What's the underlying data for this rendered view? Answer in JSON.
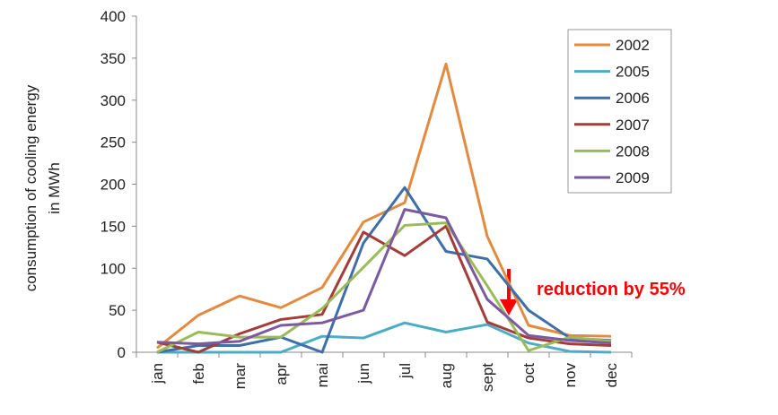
{
  "chart_data": {
    "type": "line",
    "ylabel": [
      "consumption of cooling energy",
      "in MWh"
    ],
    "categories": [
      "jan",
      "feb",
      "mar",
      "apr",
      "mai",
      "jun",
      "jul",
      "aug",
      "sept",
      "oct",
      "nov",
      "dec"
    ],
    "ylim": [
      0,
      400
    ],
    "yticks": [
      0,
      50,
      100,
      150,
      200,
      250,
      300,
      350,
      400
    ],
    "annotation": "reduction by 55%",
    "series": [
      {
        "name": "2002",
        "color": "#E38A3F",
        "values": [
          5,
          44,
          67,
          53,
          77,
          155,
          178,
          343,
          138,
          32,
          20,
          19
        ]
      },
      {
        "name": "2005",
        "color": "#4BACC6",
        "values": [
          0,
          0,
          0,
          0,
          19,
          17,
          35,
          24,
          33,
          11,
          1,
          0
        ]
      },
      {
        "name": "2006",
        "color": "#3E6FA8",
        "values": [
          0,
          8,
          8,
          18,
          0,
          130,
          196,
          120,
          111,
          50,
          17,
          14
        ]
      },
      {
        "name": "2007",
        "color": "#A23D3A",
        "values": [
          12,
          0,
          22,
          39,
          45,
          143,
          115,
          150,
          36,
          17,
          10,
          8
        ]
      },
      {
        "name": "2008",
        "color": "#9BBB59",
        "values": [
          0,
          24,
          18,
          18,
          52,
          101,
          151,
          154,
          79,
          2,
          18,
          13
        ]
      },
      {
        "name": "2009",
        "color": "#7B5AA0",
        "values": [
          12,
          10,
          13,
          32,
          35,
          50,
          170,
          160,
          63,
          20,
          14,
          11
        ]
      }
    ],
    "legend": "upper right"
  }
}
